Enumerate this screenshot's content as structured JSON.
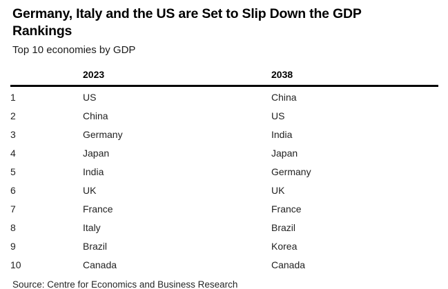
{
  "header": {
    "title": "Germany, Italy and the US are Set to Slip Down the GDP Rankings",
    "subtitle": "Top 10 economies by GDP"
  },
  "chart_data": {
    "type": "table",
    "title": "Germany, Italy and the US are Set to Slip Down the GDP Rankings",
    "subtitle": "Top 10 economies by GDP",
    "columns": [
      "",
      "2023",
      "2038"
    ],
    "rows": [
      [
        "1",
        "US",
        "China"
      ],
      [
        "2",
        "China",
        "US"
      ],
      [
        "3",
        "Germany",
        "India"
      ],
      [
        "4",
        "Japan",
        "Japan"
      ],
      [
        "5",
        "India",
        "Germany"
      ],
      [
        "6",
        "UK",
        "UK"
      ],
      [
        "7",
        "France",
        "France"
      ],
      [
        "8",
        "Italy",
        "Brazil"
      ],
      [
        "9",
        "Brazil",
        "Korea"
      ],
      [
        "10",
        "Canada",
        "Canada"
      ]
    ],
    "layout": {
      "header_rule_color": "#000000",
      "grid": "off",
      "text_color": "#222222",
      "background": "#ffffff"
    },
    "source": "Source: Centre for Economics and Business Research"
  },
  "footer": {
    "source": "Source: Centre for Economics and Business Research"
  }
}
